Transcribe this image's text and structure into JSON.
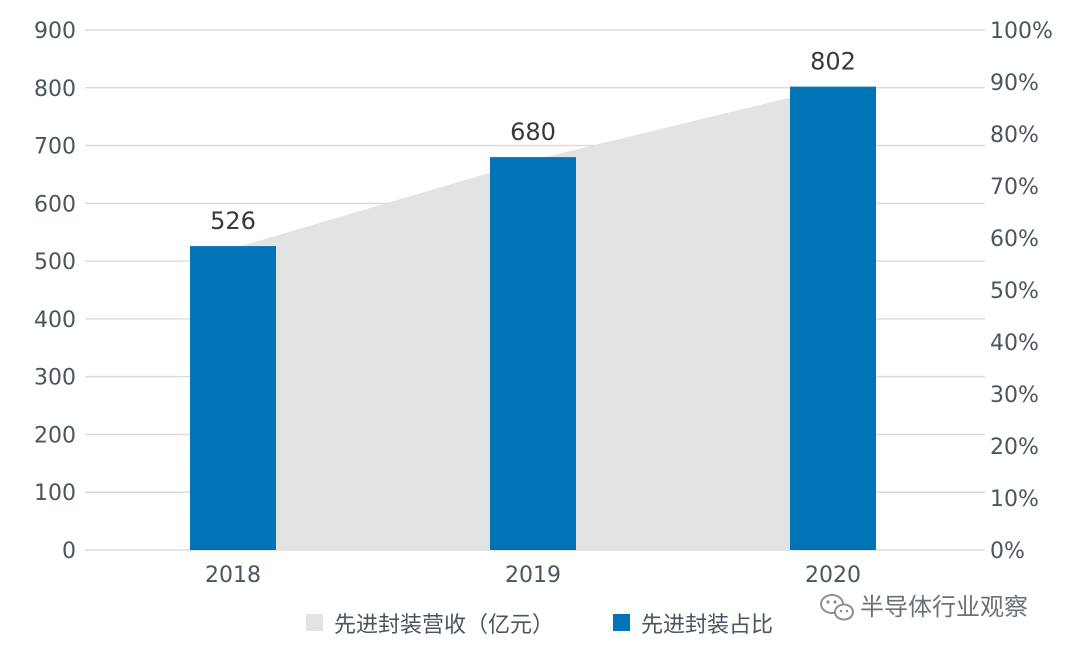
{
  "chart_data": {
    "type": "bar",
    "categories": [
      "2018",
      "2019",
      "2020"
    ],
    "series": [
      {
        "name": "先进封装营收（亿元）",
        "type": "area",
        "axis": "right",
        "values": [
          58,
          75,
          89
        ],
        "color": "#e3e3e3"
      },
      {
        "name": "先进封装占比",
        "type": "bar",
        "axis": "left",
        "values": [
          526,
          680,
          802
        ],
        "color": "#0074b5"
      }
    ],
    "data_labels": [
      "526",
      "680",
      "802"
    ],
    "y_left": {
      "lim": [
        0,
        900
      ],
      "ticks": [
        "0",
        "100",
        "200",
        "300",
        "400",
        "500",
        "600",
        "700",
        "800",
        "900"
      ]
    },
    "y_right": {
      "lim": [
        0,
        100
      ],
      "ticks": [
        "0%",
        "10%",
        "20%",
        "30%",
        "40%",
        "50%",
        "60%",
        "70%",
        "80%",
        "90%",
        "100%"
      ]
    },
    "grid": true,
    "legend": "bottom",
    "gridline_color": "#d9dde3"
  },
  "watermark": {
    "icon": "wechat-icon",
    "text": "半导体行业观察"
  }
}
